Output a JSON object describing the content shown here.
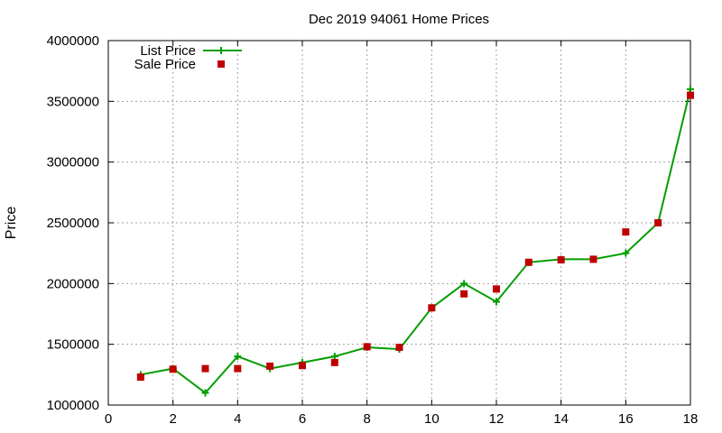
{
  "chart_data": {
    "type": "line",
    "title": "Dec 2019 94061 Home Prices",
    "xlabel": "",
    "ylabel": "Price",
    "xlim": [
      0,
      18
    ],
    "ylim": [
      1000000,
      4000000
    ],
    "xticks": [
      "0",
      "2",
      "4",
      "6",
      "8",
      "10",
      "12",
      "14",
      "16",
      "18"
    ],
    "xtick_values": [
      0,
      2,
      4,
      6,
      8,
      10,
      12,
      14,
      16,
      18
    ],
    "yticks": [
      "1000000",
      "1500000",
      "2000000",
      "2500000",
      "3000000",
      "3500000",
      "4000000"
    ],
    "ytick_values": [
      1000000,
      1500000,
      2000000,
      2500000,
      3000000,
      3500000,
      4000000
    ],
    "grid": true,
    "legend_position": "top-left",
    "x": [
      1,
      2,
      3,
      4,
      5,
      6,
      7,
      8,
      9,
      10,
      11,
      12,
      13,
      14,
      15,
      16,
      17,
      18
    ],
    "series": [
      {
        "name": "List Price",
        "style": "line-points",
        "color": "#009e00",
        "values": [
          1250000,
          1300000,
          1100000,
          1400000,
          1300000,
          1350000,
          1400000,
          1475000,
          1460000,
          1800000,
          2000000,
          1850000,
          2175000,
          2200000,
          2200000,
          2250000,
          2500000,
          3600000
        ]
      },
      {
        "name": "Sale Price",
        "style": "points",
        "color": "#c00000",
        "values": [
          1230000,
          1295000,
          1300000,
          1300000,
          1320000,
          1325000,
          1350000,
          1480000,
          1475000,
          1800000,
          1915000,
          1955000,
          2175000,
          2195000,
          2200000,
          2425000,
          2500000,
          3550000
        ]
      }
    ]
  }
}
